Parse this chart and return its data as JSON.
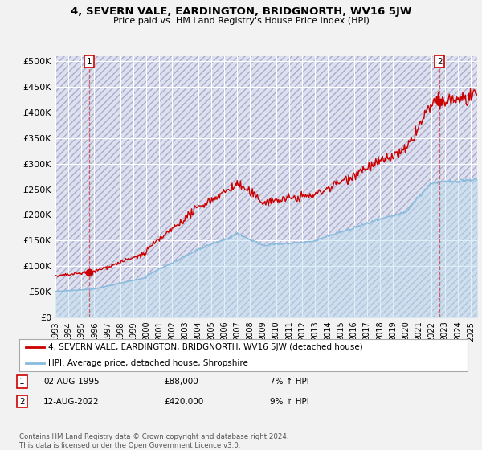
{
  "title": "4, SEVERN VALE, EARDINGTON, BRIDGNORTH, WV16 5JW",
  "subtitle": "Price paid vs. HM Land Registry's House Price Index (HPI)",
  "background_color": "#f2f2f2",
  "plot_bg_color": "#dde0ee",
  "grid_color": "#ffffff",
  "sale1_date": 1995.58,
  "sale1_price": 88000,
  "sale1_label": "1",
  "sale2_date": 2022.61,
  "sale2_price": 420000,
  "sale2_label": "2",
  "xmin": 1993.0,
  "xmax": 2025.5,
  "ymin": 0,
  "ymax": 510000,
  "yticks": [
    0,
    50000,
    100000,
    150000,
    200000,
    250000,
    300000,
    350000,
    400000,
    450000,
    500000
  ],
  "ytick_labels": [
    "£0",
    "£50K",
    "£100K",
    "£150K",
    "£200K",
    "£250K",
    "£300K",
    "£350K",
    "£400K",
    "£450K",
    "£500K"
  ],
  "xtick_years": [
    1993,
    1994,
    1995,
    1996,
    1997,
    1998,
    1999,
    2000,
    2001,
    2002,
    2003,
    2004,
    2005,
    2006,
    2007,
    2008,
    2009,
    2010,
    2011,
    2012,
    2013,
    2014,
    2015,
    2016,
    2017,
    2018,
    2019,
    2020,
    2021,
    2022,
    2023,
    2024,
    2025
  ],
  "legend_line1": "4, SEVERN VALE, EARDINGTON, BRIDGNORTH, WV16 5JW (detached house)",
  "legend_line2": "HPI: Average price, detached house, Shropshire",
  "annotation1": [
    "1",
    "02-AUG-1995",
    "£88,000",
    "7% ↑ HPI"
  ],
  "annotation2": [
    "2",
    "12-AUG-2022",
    "£420,000",
    "9% ↑ HPI"
  ],
  "footer": "Contains HM Land Registry data © Crown copyright and database right 2024.\nThis data is licensed under the Open Government Licence v3.0.",
  "line_color_property": "#cc0000",
  "line_color_hpi": "#88bbdd",
  "fill_color_hpi": "#bbddee",
  "marker_color": "#cc0000",
  "vline_color": "#cc4444"
}
